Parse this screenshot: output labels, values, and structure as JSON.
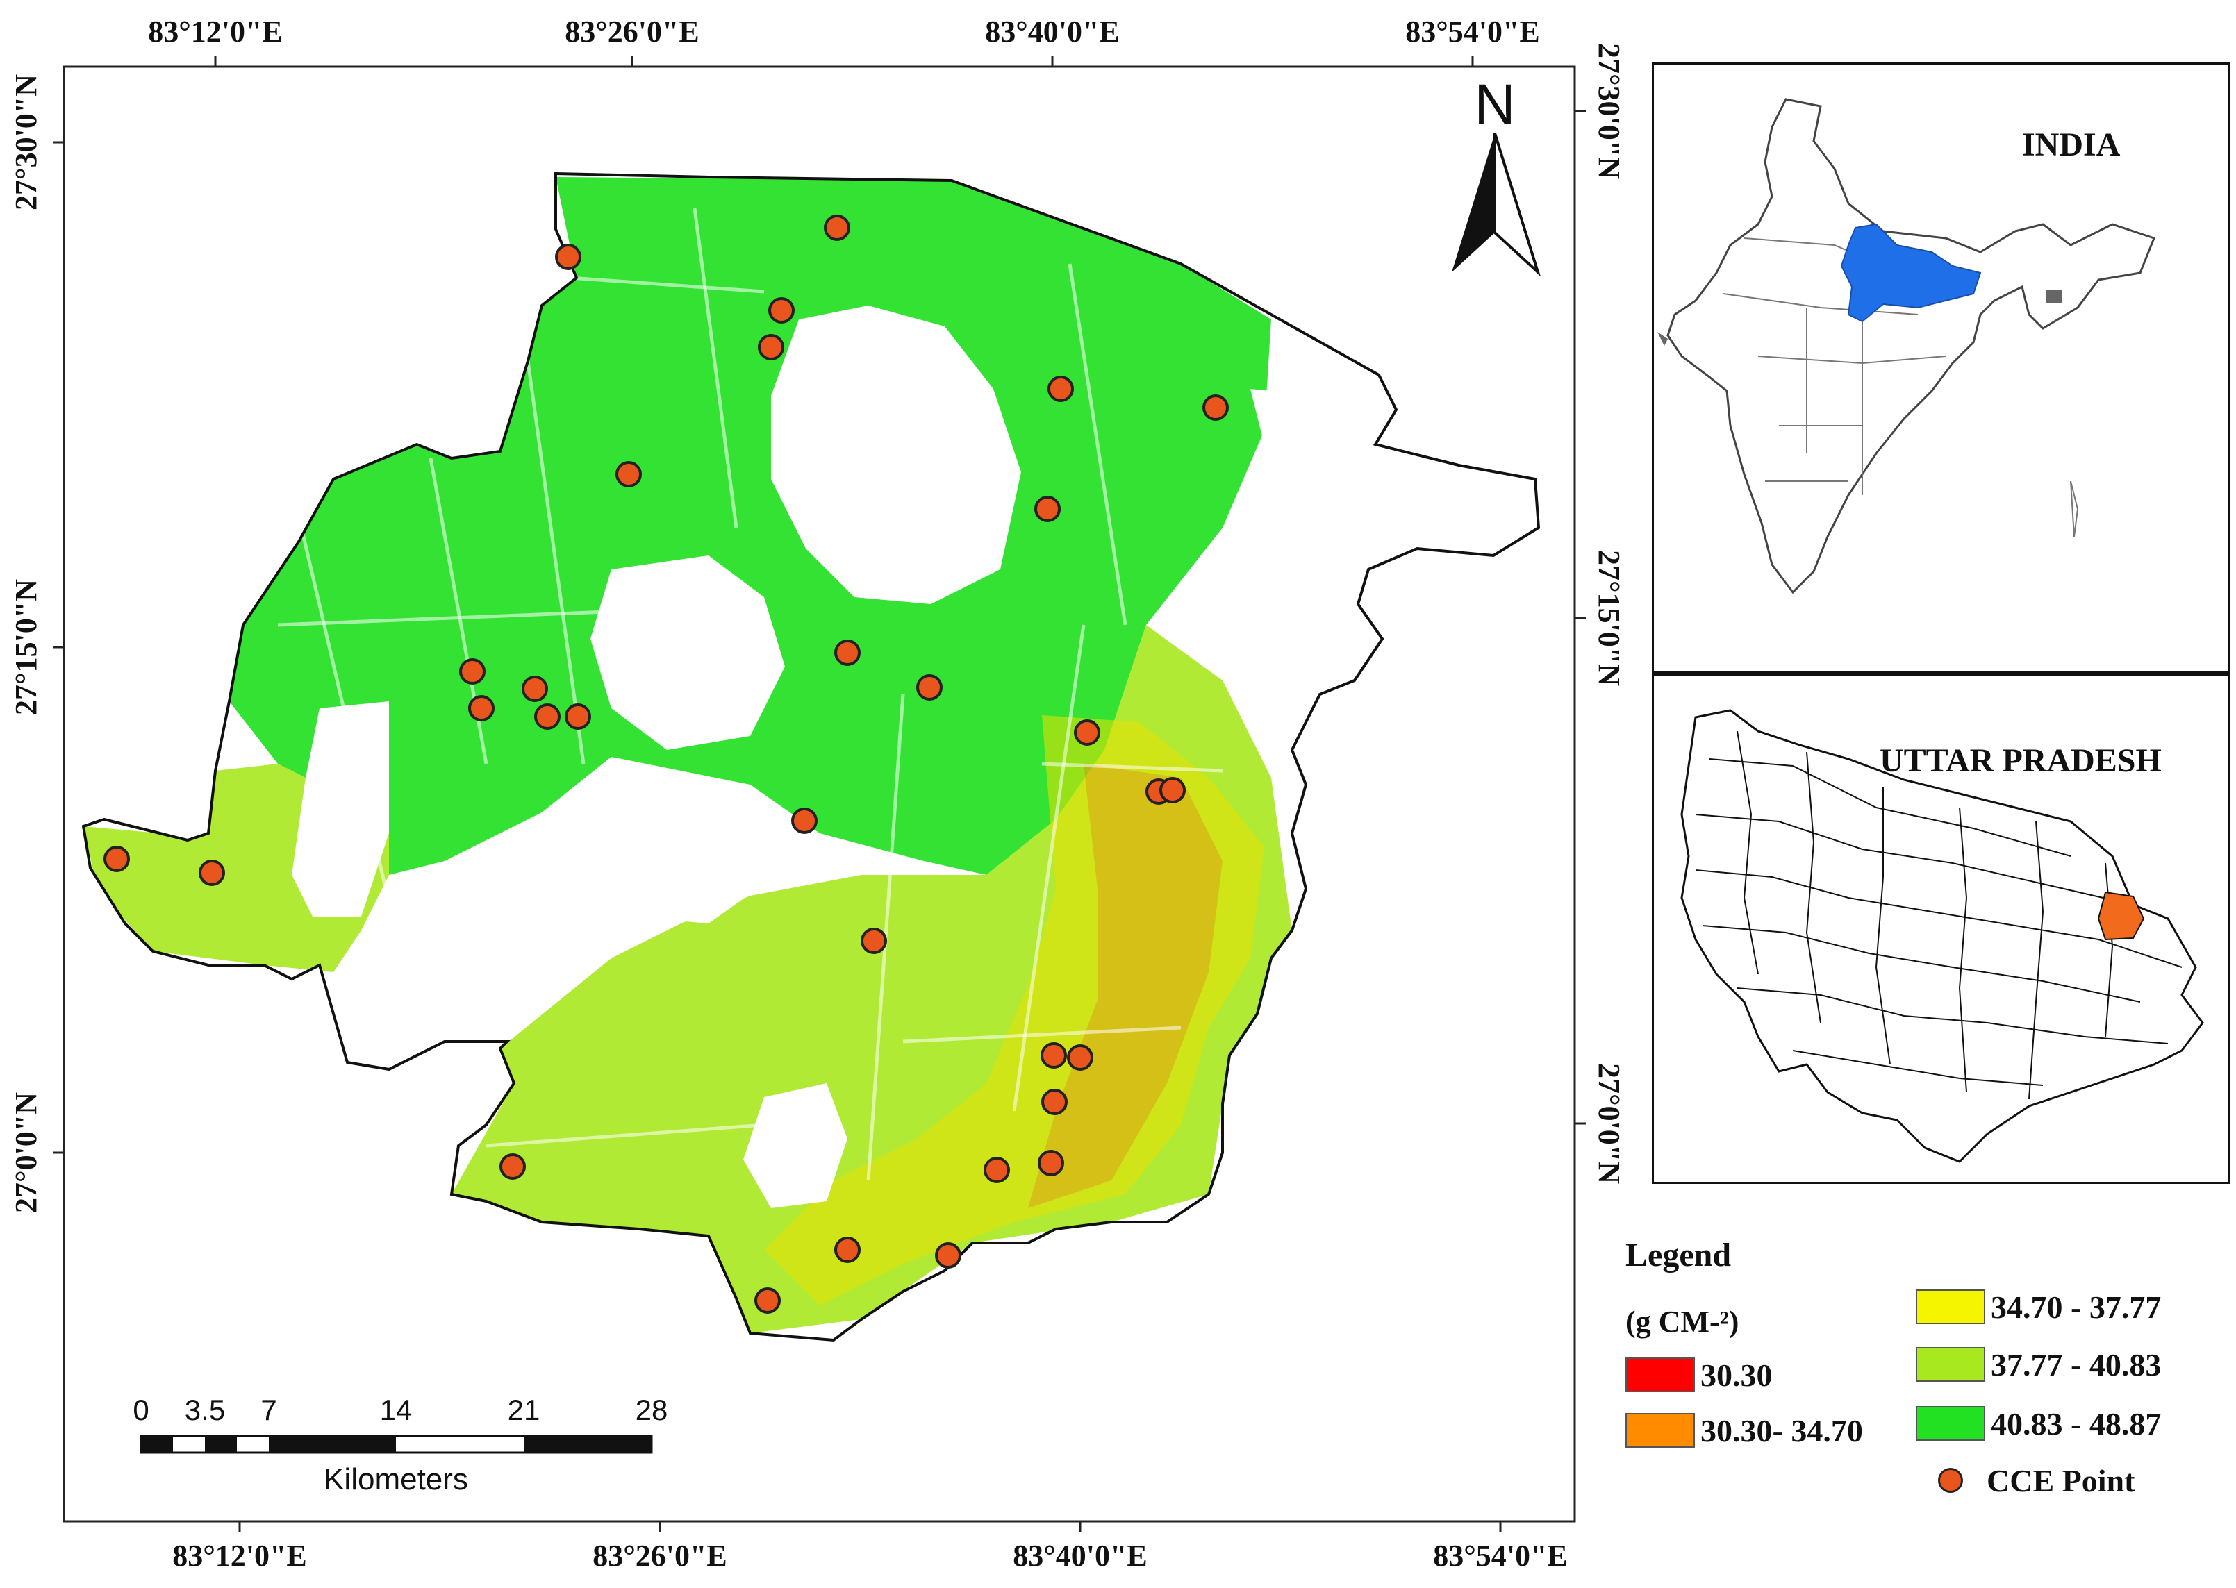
{
  "map": {
    "north_label": "N",
    "grid_labels_top": [
      "83°12'0\"E",
      "83°26'0\"E",
      "83°40'0\"E",
      "83°54'0\"E"
    ],
    "grid_labels_bottom": [
      "83°12'0\"E",
      "83°26'0\"E",
      "83°40'0\"E",
      "83°54'0\"E"
    ],
    "grid_labels_left": [
      "27°30'0\"N",
      "27°15'0\"N",
      "27°0'0\"N"
    ],
    "grid_labels_right": [
      "27°30'0\"N",
      "27°15'0\"N",
      "27°0'0\"N"
    ],
    "scale_bar": {
      "ticks": [
        "0",
        "3.5",
        "7",
        "14",
        "21",
        "28"
      ],
      "unit": "Kilometers"
    }
  },
  "insets": {
    "india_title": "INDIA",
    "up_title": "UTTAR PRADESH"
  },
  "legend": {
    "title": "Legend",
    "unit": "(g CM-²)",
    "classes": [
      {
        "label": "30.30",
        "color": "#ff0000"
      },
      {
        "label": "30.30- 34.70",
        "color": "#ff8c00"
      },
      {
        "label": "34.70 - 37.77",
        "color": "#f5f500"
      },
      {
        "label": "37.77 - 40.83",
        "color": "#a8e81e"
      },
      {
        "label": "40.83 - 48.87",
        "color": "#22e022"
      }
    ],
    "point_label": "CCE Point",
    "point_color": "#e8561d"
  },
  "colors": {
    "state_highlight": "#1f6fe8",
    "district_highlight": "#f26a1b"
  }
}
